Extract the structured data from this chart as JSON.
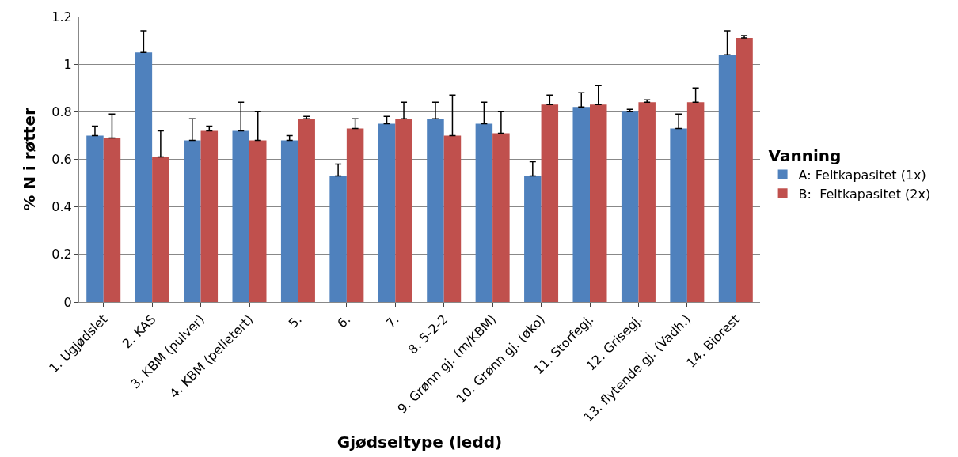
{
  "chart_data": {
    "type": "bar",
    "xlabel": "Gjødseltype (ledd)",
    "ylabel": "% N i røtter",
    "legend_title": "Vanning",
    "categories": [
      "1. Ugjødslet",
      "2. KAS",
      "3. KBM (pulver)",
      "4. KBM (pelletert)",
      "5.",
      "6.",
      "7.",
      "8. 5-2-2",
      "9. Grønn gj. (m/KBM)",
      "10. Grønn gj. (øko)",
      "11. Storfegj.",
      "12. Grisegj.",
      "13. flytende gj. (Vadh.)",
      "14. Biorest"
    ],
    "series": [
      {
        "name": "A: Feltkapasitet (1x)",
        "color": "#4f81bd",
        "values": [
          0.7,
          1.05,
          0.68,
          0.72,
          0.68,
          0.53,
          0.75,
          0.77,
          0.75,
          0.53,
          0.82,
          0.8,
          0.73,
          1.04
        ],
        "errors": [
          [
            0.7,
            0.74
          ],
          [
            1.05,
            1.14
          ],
          [
            0.68,
            0.77
          ],
          [
            0.72,
            0.84
          ],
          [
            0.68,
            0.7
          ],
          [
            0.53,
            0.58
          ],
          [
            0.75,
            0.78
          ],
          [
            0.77,
            0.84
          ],
          [
            0.75,
            0.84
          ],
          [
            0.53,
            0.59
          ],
          [
            0.82,
            0.88
          ],
          [
            0.8,
            0.81
          ],
          [
            0.73,
            0.79
          ],
          [
            1.04,
            1.14
          ]
        ]
      },
      {
        "name": "B:  Feltkapasitet (2x)",
        "color": "#c0504d",
        "values": [
          0.69,
          0.61,
          0.72,
          0.68,
          0.77,
          0.73,
          0.77,
          0.7,
          0.71,
          0.83,
          0.83,
          0.84,
          0.84,
          1.11
        ],
        "errors": [
          [
            0.69,
            0.79
          ],
          [
            0.61,
            0.72
          ],
          [
            0.72,
            0.74
          ],
          [
            0.68,
            0.8
          ],
          [
            0.77,
            0.78
          ],
          [
            0.73,
            0.77
          ],
          [
            0.77,
            0.84
          ],
          [
            0.7,
            0.87
          ],
          [
            0.71,
            0.8
          ],
          [
            0.83,
            0.87
          ],
          [
            0.83,
            0.91
          ],
          [
            0.84,
            0.85
          ],
          [
            0.84,
            0.9
          ],
          [
            1.11,
            1.12
          ]
        ]
      }
    ],
    "ylim": [
      0,
      1.2
    ],
    "yticks": [
      0,
      0.2,
      0.4,
      0.6,
      0.8,
      1,
      1.2
    ],
    "grid": "y",
    "legend": "right"
  }
}
